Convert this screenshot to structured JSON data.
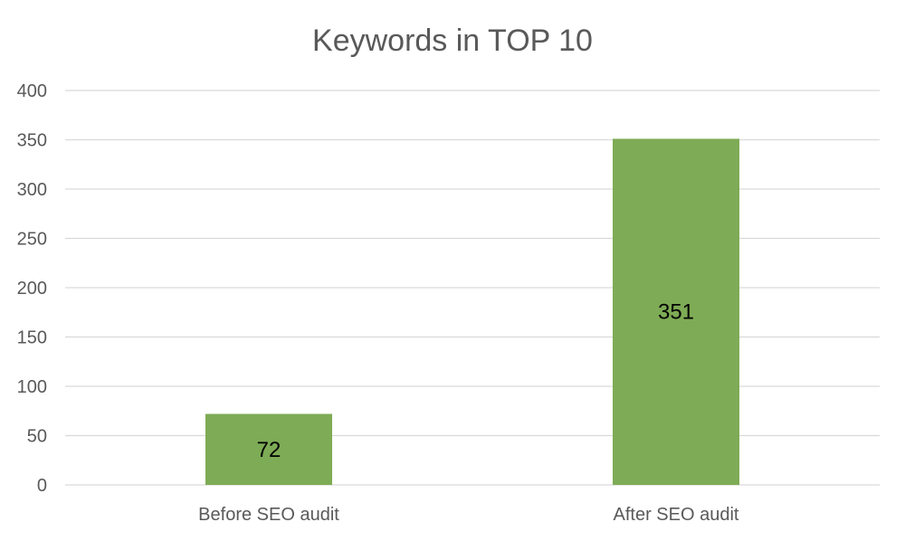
{
  "chart_data": {
    "type": "bar",
    "title": "Keywords in TOP 10",
    "categories": [
      "Before SEO audit",
      "After SEO audit"
    ],
    "values": [
      72,
      351
    ],
    "data_labels": [
      "72",
      "351"
    ],
    "ylim": [
      0,
      400
    ],
    "y_ticks": [
      0,
      50,
      100,
      150,
      200,
      250,
      300,
      350,
      400
    ],
    "grid": true,
    "legend": "none",
    "bar_color": "#7eab55"
  }
}
